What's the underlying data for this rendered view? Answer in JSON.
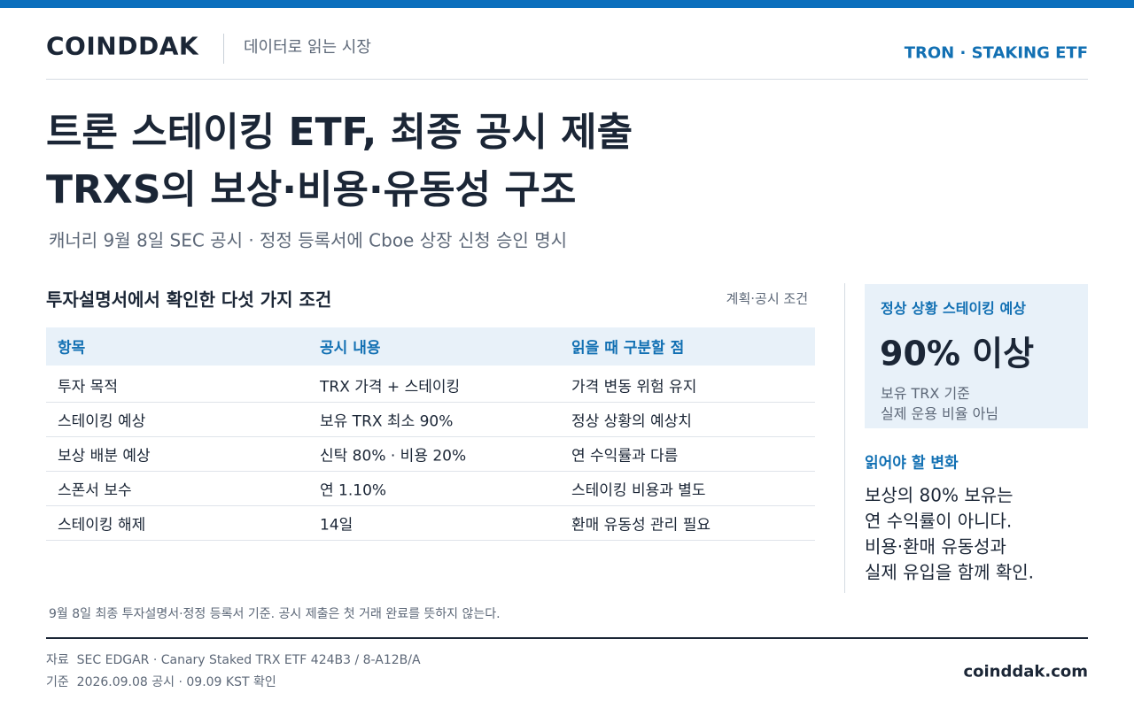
{
  "header": {
    "brand": "COINDDAK",
    "tagline": "데이터로 읽는 시장",
    "topic": "TRON · STAKING ETF"
  },
  "headline": {
    "lines": [
      "트론 스테이킹 ETF, 최종 공시 제출",
      "TRXS의 보상·비용·유동성 구조"
    ],
    "subtitle": "캐너리 9월 8일 SEC 공시 · 정정 등록서에 Cboe 상장 신청 승인 명시"
  },
  "table": {
    "title": "투자설명서에서 확인한 다섯 가지 조건",
    "tag": "계획·공시 조건",
    "columns": [
      "항목",
      "공시 내용",
      "읽을 때 구분할 점"
    ],
    "rows": [
      [
        "투자 목적",
        "TRX 가격 + 스테이킹",
        "가격 변동 위험 유지"
      ],
      [
        "스테이킹 예상",
        "보유 TRX 최소 90%",
        "정상 상황의 예상치"
      ],
      [
        "보상 배분 예상",
        "신탁 80% · 비용 20%",
        "연 수익률과 다름"
      ],
      [
        "스폰서 보수",
        "연 1.10%",
        "스테이킹 비용과 별도"
      ],
      [
        "스테이킹 해제",
        "14일",
        "환매 유동성 관리 필요"
      ]
    ]
  },
  "sidebar": {
    "box": {
      "label": "정상 상황 스테이킹 예상",
      "value": "90% 이상",
      "notes": [
        "보유 TRX 기준",
        "실제 운용 비율 아님"
      ]
    },
    "note": {
      "title": "읽어야 할 변화",
      "lines": [
        "보상의 80% 보유는",
        "연 수익률이 아니다.",
        "비용·환매 유동성과",
        "실제 유입을 함께 확인."
      ]
    }
  },
  "footnote": "9월 8일 최종 투자설명서·정정 등록서 기준. 공시 제출은 첫 거래 완료를 뜻하지 않는다.",
  "footer": {
    "sources": [
      "자료  SEC EDGAR · Canary Staked TRX ETF 424B3 / 8-A12B/A",
      "기준  2026.09.08 공시 · 09.09 KST 확인"
    ],
    "site": "coinddak.com"
  }
}
